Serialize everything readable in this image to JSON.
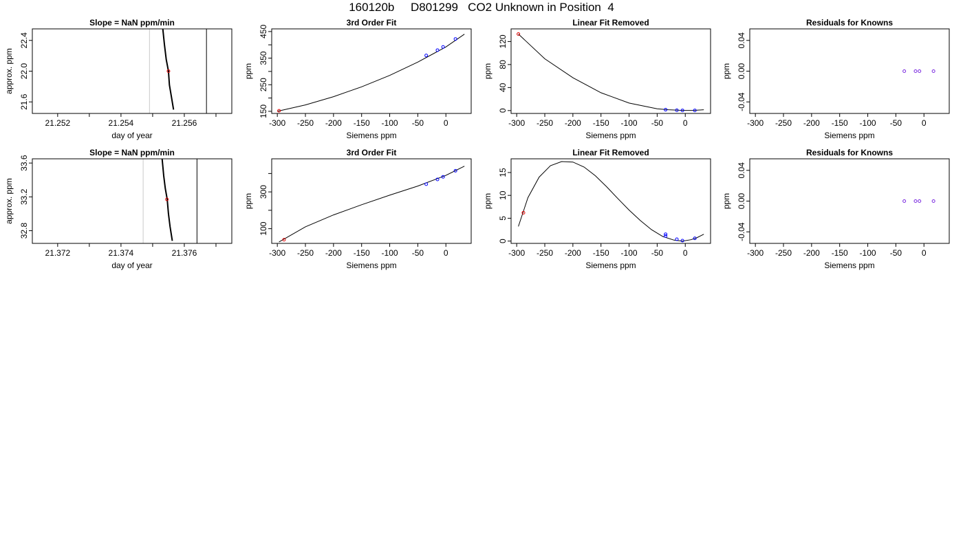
{
  "page_title": "160120b     D801299   CO2 Unknown in Position  4",
  "chart_data": [
    {
      "type": "scatter",
      "title": "Slope =  NaN  ppm/min",
      "xlabel": "day of year",
      "ylabel": "approx. ppm",
      "xlim": [
        21.2512,
        21.2575
      ],
      "ylim": [
        21.45,
        22.55
      ],
      "x_ticks": [
        21.252,
        21.253,
        21.254,
        21.255,
        21.256,
        21.257
      ],
      "x_tick_labels": [
        "21.252",
        "",
        "21.254",
        "",
        "21.256",
        ""
      ],
      "y_ticks": [
        21.6,
        22.0,
        22.4
      ],
      "y_tick_labels": [
        "21.6",
        "22.0",
        "22.4"
      ],
      "vlines": [
        {
          "x": 21.2549,
          "color": "#c8c8c8"
        },
        {
          "x": 21.2567,
          "color": "#000000"
        }
      ],
      "trace": {
        "x": [
          21.25532,
          21.25537,
          21.25543,
          21.2555,
          21.25553,
          21.2556,
          21.25566
        ],
        "y": [
          22.55,
          22.35,
          22.15,
          22.0,
          21.82,
          21.65,
          21.5
        ]
      },
      "highlight": {
        "x": 21.2555,
        "y": 22.0,
        "color": "#e00000"
      }
    },
    {
      "type": "line",
      "title": "3rd Order Fit",
      "xlabel": "Siemens ppm",
      "ylabel": "ppm",
      "xlim": [
        -310,
        45
      ],
      "ylim": [
        142,
        460
      ],
      "x_ticks": [
        -300,
        -250,
        -200,
        -150,
        -100,
        -50,
        0
      ],
      "x_tick_labels": [
        "-300",
        "-250",
        "-200",
        "-150",
        "-100",
        "-50",
        "0"
      ],
      "y_ticks": [
        150,
        200,
        250,
        300,
        350,
        400,
        450
      ],
      "y_tick_labels": [
        "150",
        "",
        "250",
        "",
        "350",
        "",
        "450"
      ],
      "curve": {
        "x": [
          -300,
          -250,
          -200,
          -150,
          -100,
          -50,
          0,
          33
        ],
        "y": [
          150,
          174,
          205,
          242,
          285,
          335,
          392,
          440
        ]
      },
      "series": [
        {
          "points": [
            [
              -35,
              360
            ],
            [
              -15,
              380
            ],
            [
              -5,
              392
            ],
            [
              17,
              422
            ]
          ],
          "color": "#0000ff"
        },
        {
          "points": [
            [
              -297,
              152
            ]
          ],
          "color": "#e00000"
        }
      ]
    },
    {
      "type": "line",
      "title": "Linear Fit Removed",
      "xlabel": "Siemens ppm",
      "ylabel": "ppm",
      "xlim": [
        -310,
        45
      ],
      "ylim": [
        -5,
        142
      ],
      "x_ticks": [
        -300,
        -250,
        -200,
        -150,
        -100,
        -50,
        0
      ],
      "x_tick_labels": [
        "-300",
        "-250",
        "-200",
        "-150",
        "-100",
        "-50",
        "0"
      ],
      "y_ticks": [
        0,
        40,
        80,
        120
      ],
      "y_tick_labels": [
        "0",
        "40",
        "80",
        "120"
      ],
      "curve": {
        "x": [
          -297,
          -250,
          -200,
          -150,
          -100,
          -50,
          -30,
          -10,
          0,
          15,
          33
        ],
        "y": [
          133,
          90,
          57,
          31,
          13,
          3,
          1.5,
          0.5,
          0.3,
          0.3,
          1.5
        ]
      },
      "series": [
        {
          "points": [
            [
              -35,
              1.5
            ],
            [
              -15,
              0.5
            ],
            [
              -5,
              0.3
            ],
            [
              17,
              0.3
            ]
          ],
          "color": "#0000ff"
        },
        {
          "points": [
            [
              -297,
              133
            ]
          ],
          "color": "#e00000"
        }
      ]
    },
    {
      "type": "scatter",
      "title": "Residuals for Knowns",
      "xlabel": "Siemens ppm",
      "ylabel": "ppm",
      "xlim": [
        -310,
        45
      ],
      "ylim": [
        -0.055,
        0.055
      ],
      "x_ticks": [
        -300,
        -250,
        -200,
        -150,
        -100,
        -50,
        0
      ],
      "x_tick_labels": [
        "-300",
        "-250",
        "-200",
        "-150",
        "-100",
        "-50",
        "0"
      ],
      "y_ticks": [
        -0.04,
        0.0,
        0.04
      ],
      "y_tick_labels": [
        "-0.04",
        "0.00",
        "0.04"
      ],
      "series": [
        {
          "points": [
            [
              -35,
              0
            ],
            [
              -15,
              0
            ],
            [
              -8,
              0
            ],
            [
              17,
              0
            ]
          ],
          "color": "#7b2be0"
        }
      ]
    },
    {
      "type": "scatter",
      "title": "Slope =  NaN  ppm/min",
      "xlabel": "day of year",
      "ylabel": "approx. ppm",
      "xlim": [
        21.3712,
        21.3775
      ],
      "ylim": [
        32.65,
        33.65
      ],
      "x_ticks": [
        21.372,
        21.373,
        21.374,
        21.375,
        21.376,
        21.377
      ],
      "x_tick_labels": [
        "21.372",
        "",
        "21.374",
        "",
        "21.376",
        ""
      ],
      "y_ticks": [
        32.8,
        33.2,
        33.6
      ],
      "y_tick_labels": [
        "32.8",
        "33.2",
        "33.6"
      ],
      "vlines": [
        {
          "x": 21.3747,
          "color": "#c8c8c8"
        },
        {
          "x": 21.3764,
          "color": "#000000"
        }
      ],
      "trace": {
        "x": [
          21.3753,
          21.37535,
          21.3754,
          21.37546,
          21.3755,
          21.37555,
          21.37562
        ],
        "y": [
          33.65,
          33.45,
          33.3,
          33.17,
          33.0,
          32.85,
          32.68
        ]
      },
      "highlight": {
        "x": 21.37545,
        "y": 33.17,
        "color": "#e00000"
      }
    },
    {
      "type": "line",
      "title": "3rd Order Fit",
      "xlabel": "Siemens ppm",
      "ylabel": "ppm",
      "xlim": [
        -310,
        45
      ],
      "ylim": [
        20,
        480
      ],
      "x_ticks": [
        -300,
        -250,
        -200,
        -150,
        -100,
        -50,
        0
      ],
      "x_tick_labels": [
        "-300",
        "-250",
        "-200",
        "-150",
        "-100",
        "-50",
        "0"
      ],
      "y_ticks": [
        100,
        200,
        300,
        400
      ],
      "y_tick_labels": [
        "100",
        "",
        "300",
        ""
      ],
      "curve": {
        "x": [
          -297,
          -250,
          -200,
          -150,
          -100,
          -50,
          0,
          33
        ],
        "y": [
          28,
          110,
          175,
          230,
          282,
          332,
          390,
          440
        ]
      },
      "series": [
        {
          "points": [
            [
              -35,
              342
            ],
            [
              -15,
              368
            ],
            [
              -5,
              382
            ],
            [
              17,
              415
            ]
          ],
          "color": "#0000ff"
        },
        {
          "points": [
            [
              -288,
              40
            ]
          ],
          "color": "#e00000"
        }
      ]
    },
    {
      "type": "line",
      "title": "Linear Fit Removed",
      "xlabel": "Siemens ppm",
      "ylabel": "ppm",
      "xlim": [
        -310,
        45
      ],
      "ylim": [
        -0.5,
        18
      ],
      "x_ticks": [
        -300,
        -250,
        -200,
        -150,
        -100,
        -50,
        0
      ],
      "x_tick_labels": [
        "-300",
        "-250",
        "-200",
        "-150",
        "-100",
        "-50",
        "0"
      ],
      "y_ticks": [
        0,
        5,
        10,
        15
      ],
      "y_tick_labels": [
        "0",
        "5",
        "10",
        "15"
      ],
      "curve": {
        "x": [
          -297,
          -280,
          -260,
          -240,
          -220,
          -200,
          -180,
          -160,
          -140,
          -120,
          -100,
          -80,
          -60,
          -40,
          -20,
          -5,
          10,
          20,
          33
        ],
        "y": [
          3.2,
          9.5,
          14.0,
          16.5,
          17.4,
          17.3,
          16.2,
          14.3,
          11.9,
          9.3,
          6.8,
          4.5,
          2.5,
          1.0,
          0.2,
          0.0,
          0.3,
          0.7,
          1.5
        ]
      },
      "series": [
        {
          "points": [
            [
              -35,
              1.5
            ],
            [
              -35,
              1.1
            ],
            [
              -15,
              0.4
            ],
            [
              -5,
              0.1
            ],
            [
              17,
              0.6
            ]
          ],
          "color": "#0000ff"
        },
        {
          "points": [
            [
              -288,
              6.2
            ]
          ],
          "color": "#e00000"
        }
      ]
    },
    {
      "type": "scatter",
      "title": "Residuals for Knowns",
      "xlabel": "Siemens ppm",
      "ylabel": "ppm",
      "xlim": [
        -310,
        45
      ],
      "ylim": [
        -0.055,
        0.055
      ],
      "x_ticks": [
        -300,
        -250,
        -200,
        -150,
        -100,
        -50,
        0
      ],
      "x_tick_labels": [
        "-300",
        "-250",
        "-200",
        "-150",
        "-100",
        "-50",
        "0"
      ],
      "y_ticks": [
        -0.04,
        0.0,
        0.04
      ],
      "y_tick_labels": [
        "-0.04",
        "0.00",
        "0.04"
      ],
      "series": [
        {
          "points": [
            [
              -35,
              0
            ],
            [
              -15,
              0
            ],
            [
              -8,
              0
            ],
            [
              17,
              0
            ]
          ],
          "color": "#7b2be0"
        }
      ]
    }
  ]
}
